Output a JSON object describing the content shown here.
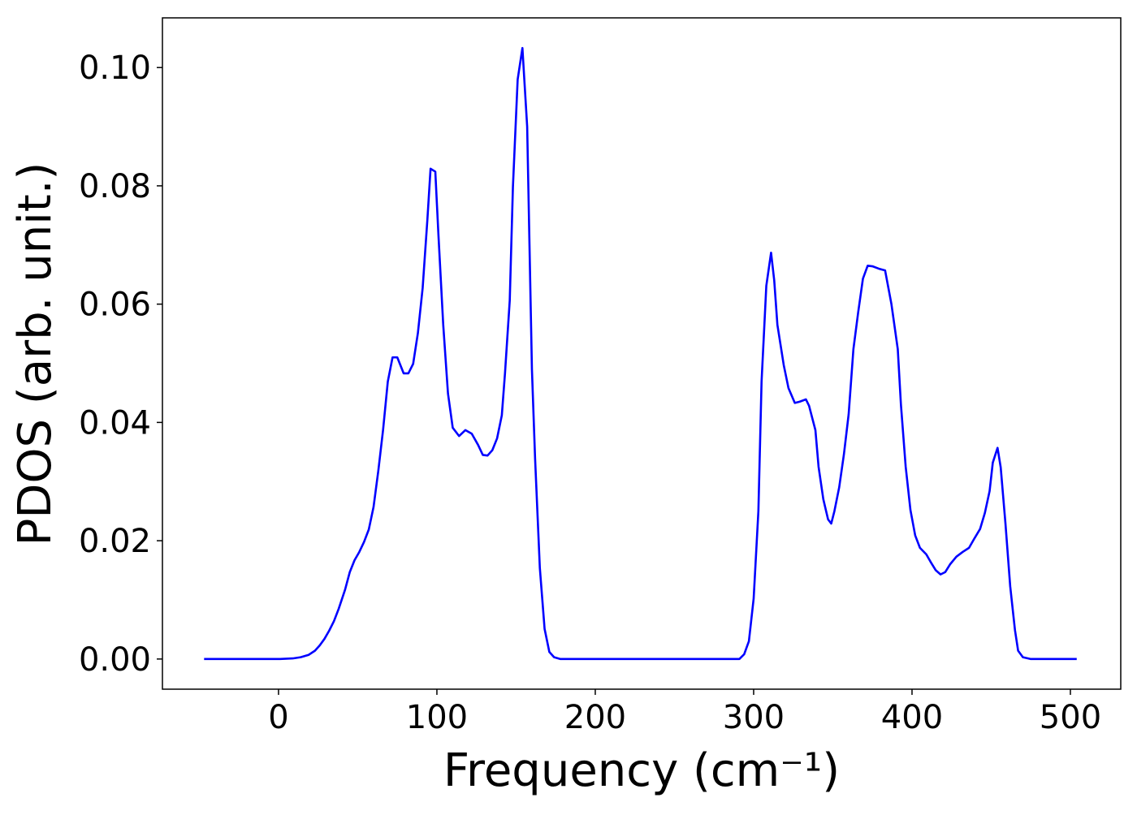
{
  "chart_data": {
    "type": "line",
    "xlabel": "Frequency (cm⁻¹)",
    "ylabel": "PDOS (arb. unit.)",
    "xlim": [
      -73.3,
      531.8
    ],
    "ylim": [
      -0.0051,
      0.1084
    ],
    "xticks": [
      0,
      100,
      200,
      300,
      400,
      500
    ],
    "yticks": [
      {
        "value": 0,
        "label": "0.00"
      },
      {
        "value": 0.02,
        "label": "0.02"
      },
      {
        "value": 0.04,
        "label": "0.04"
      },
      {
        "value": 0.06,
        "label": "0.06"
      },
      {
        "value": 0.08,
        "label": "0.08"
      },
      {
        "value": 0.1,
        "label": "0.10"
      }
    ],
    "grid": false,
    "series": [
      {
        "color": "#0000ff",
        "x": [
          -47,
          1,
          9,
          14,
          19,
          23,
          26,
          29,
          32,
          35,
          38,
          42,
          45,
          48,
          51,
          54,
          57,
          60,
          63,
          66,
          69,
          72,
          75,
          79,
          82,
          85,
          88,
          91,
          94,
          96,
          99,
          101,
          104,
          107,
          110,
          114,
          118,
          122,
          126,
          129,
          132,
          135,
          138,
          141,
          143,
          146,
          148,
          151,
          154,
          157,
          160,
          162,
          165,
          168,
          171,
          174,
          178,
          291,
          294,
          297,
          300,
          303,
          305,
          308,
          311,
          313,
          315,
          319,
          322,
          326,
          329,
          333,
          335,
          339,
          341,
          344,
          347,
          349,
          351,
          354,
          357,
          360,
          363,
          366,
          369,
          372,
          375,
          379,
          383,
          387,
          391,
          393,
          396,
          399,
          402,
          405,
          409,
          412,
          415,
          418,
          421,
          424,
          428,
          432,
          436,
          439,
          443,
          446,
          449,
          451,
          454,
          456,
          459,
          462,
          465,
          467,
          470,
          475,
          504
        ],
        "values": [
          0,
          0,
          0.0001,
          0.0003,
          0.0007,
          0.0014,
          0.0023,
          0.0034,
          0.0048,
          0.0064,
          0.0085,
          0.0117,
          0.0147,
          0.0167,
          0.0181,
          0.0198,
          0.0219,
          0.0257,
          0.0318,
          0.0387,
          0.0469,
          0.051,
          0.051,
          0.0483,
          0.0483,
          0.0499,
          0.0551,
          0.0627,
          0.0743,
          0.0829,
          0.0824,
          0.0716,
          0.0565,
          0.0449,
          0.0391,
          0.0377,
          0.0387,
          0.0381,
          0.0362,
          0.0345,
          0.0344,
          0.0353,
          0.0373,
          0.0412,
          0.0483,
          0.0606,
          0.0798,
          0.098,
          0.1033,
          0.09,
          0.049,
          0.0339,
          0.0154,
          0.0051,
          0.0012,
          0.0003,
          0,
          0,
          0.0008,
          0.003,
          0.0102,
          0.025,
          0.0469,
          0.0631,
          0.0687,
          0.064,
          0.0565,
          0.0497,
          0.0458,
          0.0433,
          0.0435,
          0.0439,
          0.0428,
          0.0387,
          0.0325,
          0.027,
          0.0236,
          0.0229,
          0.025,
          0.029,
          0.0346,
          0.0414,
          0.0524,
          0.0586,
          0.0643,
          0.0665,
          0.0664,
          0.066,
          0.0657,
          0.06,
          0.0524,
          0.043,
          0.0325,
          0.0252,
          0.0209,
          0.0188,
          0.0177,
          0.0163,
          0.015,
          0.0143,
          0.0147,
          0.016,
          0.0173,
          0.0181,
          0.0188,
          0.0202,
          0.022,
          0.0247,
          0.0284,
          0.0332,
          0.0357,
          0.0324,
          0.0229,
          0.0123,
          0.0049,
          0.0014,
          0.0003,
          0,
          0
        ]
      }
    ]
  }
}
